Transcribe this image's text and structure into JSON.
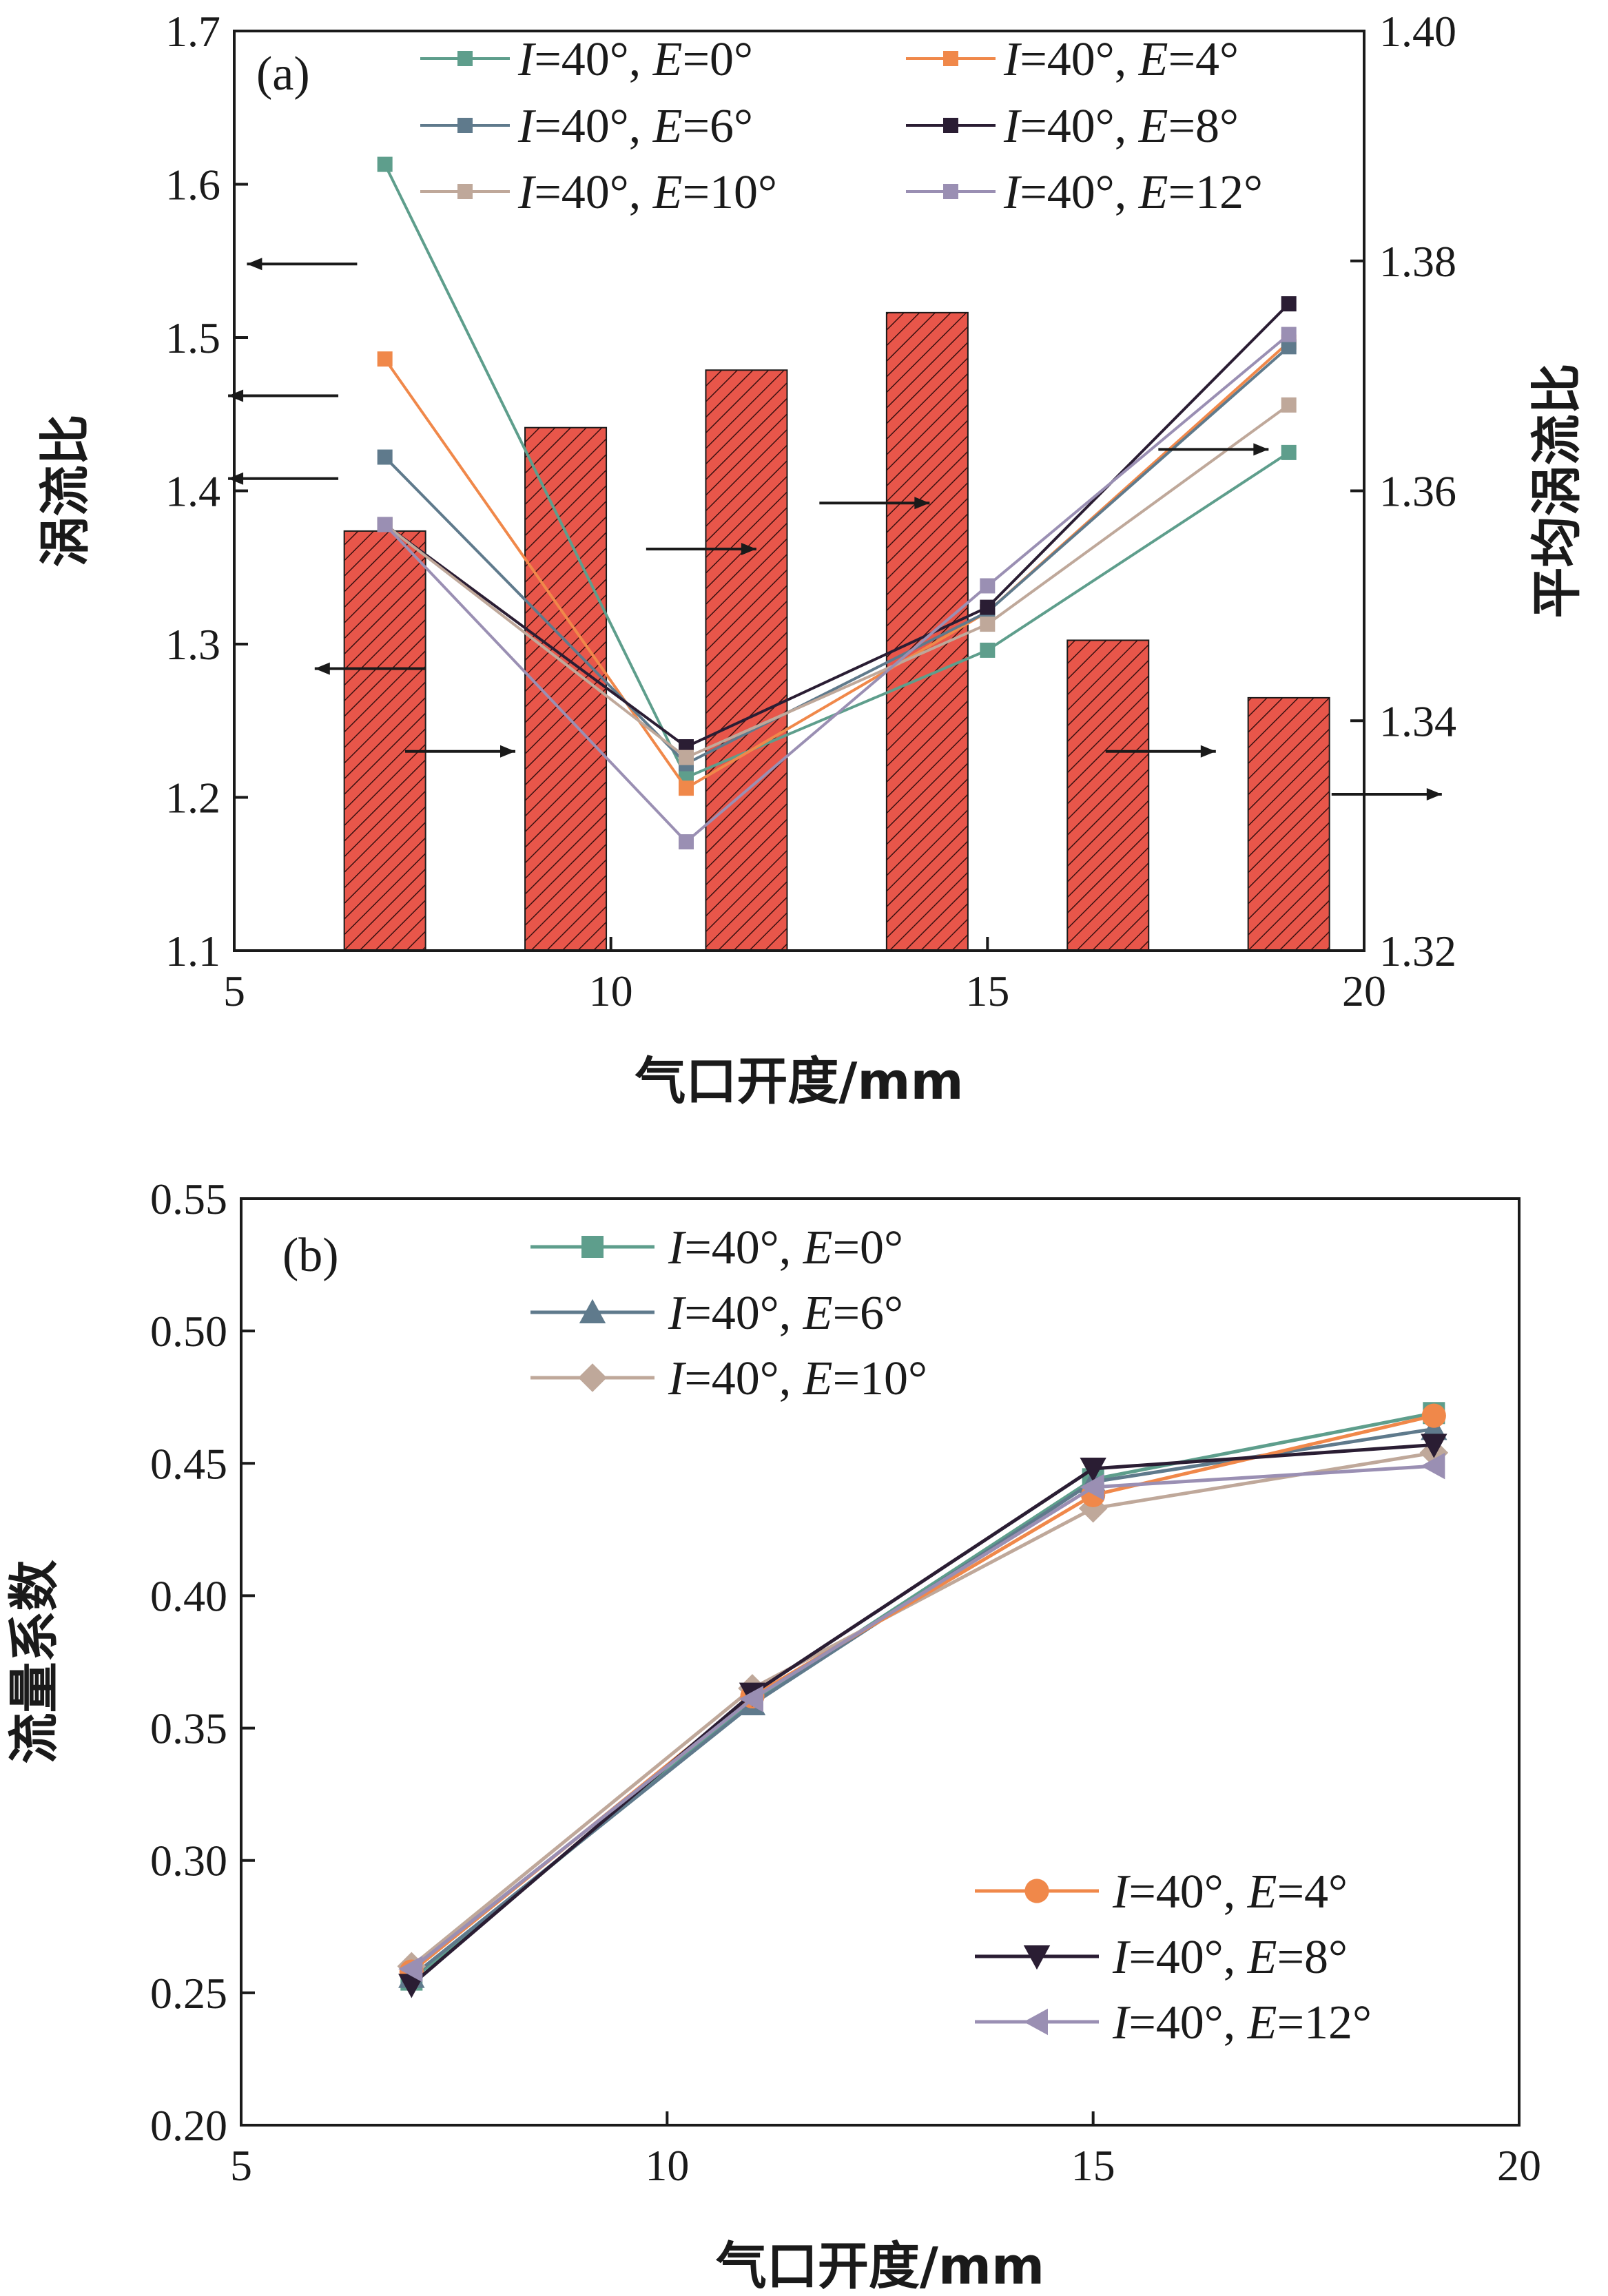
{
  "chart_data": [
    {
      "type": "bar+line",
      "panel_label": "(a)",
      "xlabel": "气口开度/mm",
      "ylabel_left": "涡流比",
      "ylabel_right": "平均涡流比",
      "xlim": [
        5,
        20
      ],
      "xticks": [
        "5",
        "10",
        "15",
        "20"
      ],
      "ylim_left": [
        1.1,
        1.7
      ],
      "yticks_left": [
        "1.1",
        "1.2",
        "1.3",
        "1.4",
        "1.5",
        "1.6",
        "1.7"
      ],
      "ylim_right": [
        1.32,
        1.4
      ],
      "yticks_right": [
        "1.32",
        "1.34",
        "1.36",
        "1.38",
        "1.40"
      ],
      "bars": {
        "axis": "right",
        "color": "#e8564a",
        "hatch": true,
        "x": [
          7,
          9.4,
          11.8,
          14.2,
          16.6,
          19
        ],
        "values": [
          1.3565,
          1.3655,
          1.3705,
          1.3755,
          1.347,
          1.342
        ]
      },
      "series": [
        {
          "name": "I=40°, E=0°",
          "I": "I",
          "I_val": "=40°, ",
          "E": "E",
          "E_val": "=0°",
          "color": "#5e9e8c",
          "marker": "square",
          "x": [
            7,
            11,
            15,
            19
          ],
          "values": [
            1.613,
            1.213,
            1.296,
            1.425
          ]
        },
        {
          "name": "I=40°, E=4°",
          "I": "I",
          "I_val": "=40°, ",
          "E": "E",
          "E_val": "=4°",
          "color": "#f0884a",
          "marker": "square",
          "x": [
            7,
            11,
            15,
            19
          ],
          "values": [
            1.486,
            1.206,
            1.321,
            1.497
          ]
        },
        {
          "name": "I=40°, E=6°",
          "I": "I",
          "I_val": "=40°, ",
          "E": "E",
          "E_val": "=6°",
          "color": "#5f7a8c",
          "marker": "square",
          "x": [
            7,
            11,
            15,
            19
          ],
          "values": [
            1.422,
            1.222,
            1.321,
            1.494
          ]
        },
        {
          "name": "I=40°, E=8°",
          "I": "I",
          "I_val": "=40°, ",
          "E": "E",
          "E_val": "=8°",
          "color": "#2a1d33",
          "marker": "square",
          "x": [
            7,
            11,
            15,
            19
          ],
          "values": [
            1.378,
            1.233,
            1.324,
            1.522
          ]
        },
        {
          "name": "I=40°, E=10°",
          "I": "I",
          "I_val": "=40°, ",
          "E": "E",
          "E_val": "=10°",
          "color": "#bfa89a",
          "marker": "square",
          "x": [
            7,
            11,
            15,
            19
          ],
          "values": [
            1.378,
            1.226,
            1.313,
            1.456
          ]
        },
        {
          "name": "I=40°, E=12°",
          "I": "I",
          "I_val": "=40°, ",
          "E": "E",
          "E_val": "=12°",
          "color": "#9a8fb3",
          "marker": "square",
          "x": [
            7,
            11,
            15,
            19
          ],
          "values": [
            1.378,
            1.171,
            1.338,
            1.502
          ]
        }
      ],
      "arrows": [
        {
          "x_data": 5.9,
          "y_data": 1.548,
          "dir": "left"
        },
        {
          "x_data": 5.65,
          "y_data": 1.462,
          "dir": "left"
        },
        {
          "x_data": 5.65,
          "y_data": 1.408,
          "dir": "left"
        },
        {
          "x_data": 6.8,
          "y_data": 1.284,
          "dir": "left"
        },
        {
          "x_data": 8.0,
          "y_data": 1.23,
          "dir": "right"
        },
        {
          "x_data": 11.2,
          "y_data": 1.362,
          "dir": "right"
        },
        {
          "x_data": 13.5,
          "y_data": 1.392,
          "dir": "right"
        },
        {
          "x_data": 18.0,
          "y_data": 1.427,
          "dir": "right"
        },
        {
          "x_data": 17.3,
          "y_data": 1.23,
          "dir": "right"
        },
        {
          "x_data": 20.3,
          "y_data": 1.202,
          "dir": "right"
        }
      ]
    },
    {
      "type": "line",
      "panel_label": "(b)",
      "xlabel": "气口开度/mm",
      "ylabel": "流量系数",
      "xlim": [
        5,
        20
      ],
      "xticks": [
        "5",
        "10",
        "15",
        "20"
      ],
      "ylim": [
        0.2,
        0.55
      ],
      "yticks": [
        "0.20",
        "0.25",
        "0.30",
        "0.35",
        "0.40",
        "0.45",
        "0.50",
        "0.55"
      ],
      "series": [
        {
          "name": "I=40°, E=0°",
          "I": "I",
          "I_val": "=40°, ",
          "E": "E",
          "E_val": "=0°",
          "color": "#5e9e8c",
          "marker": "square",
          "x": [
            7,
            11,
            15,
            19
          ],
          "values": [
            0.255,
            0.36,
            0.444,
            0.469
          ]
        },
        {
          "name": "I=40°, E=6°",
          "I": "I",
          "I_val": "=40°, ",
          "E": "E",
          "E_val": "=6°",
          "color": "#5f7a8c",
          "marker": "triangle-up",
          "x": [
            7,
            11,
            15,
            19
          ],
          "values": [
            0.256,
            0.359,
            0.443,
            0.463
          ]
        },
        {
          "name": "I=40°, E=10°",
          "I": "I",
          "I_val": "=40°, ",
          "E": "E",
          "E_val": "=10°",
          "color": "#bfa89a",
          "marker": "diamond",
          "x": [
            7,
            11,
            15,
            19
          ],
          "values": [
            0.26,
            0.365,
            0.433,
            0.454
          ]
        },
        {
          "name": "I=40°, E=4°",
          "I": "I",
          "I_val": "=40°, ",
          "E": "E",
          "E_val": "=4°",
          "color": "#f0884a",
          "marker": "circle",
          "x": [
            7,
            11,
            15,
            19
          ],
          "values": [
            0.258,
            0.362,
            0.438,
            0.468
          ]
        },
        {
          "name": "I=40°, E=8°",
          "I": "I",
          "I_val": "=40°, ",
          "E": "E",
          "E_val": "=8°",
          "color": "#2a1d33",
          "marker": "triangle-down",
          "x": [
            7,
            11,
            15,
            19
          ],
          "values": [
            0.253,
            0.363,
            0.448,
            0.457
          ]
        },
        {
          "name": "I=40°, E=12°",
          "I": "I",
          "I_val": "=40°, ",
          "E": "E",
          "E_val": "=12°",
          "color": "#9a8fb3",
          "marker": "triangle-left",
          "x": [
            7,
            11,
            15,
            19
          ],
          "values": [
            0.259,
            0.361,
            0.441,
            0.449
          ]
        }
      ]
    }
  ]
}
